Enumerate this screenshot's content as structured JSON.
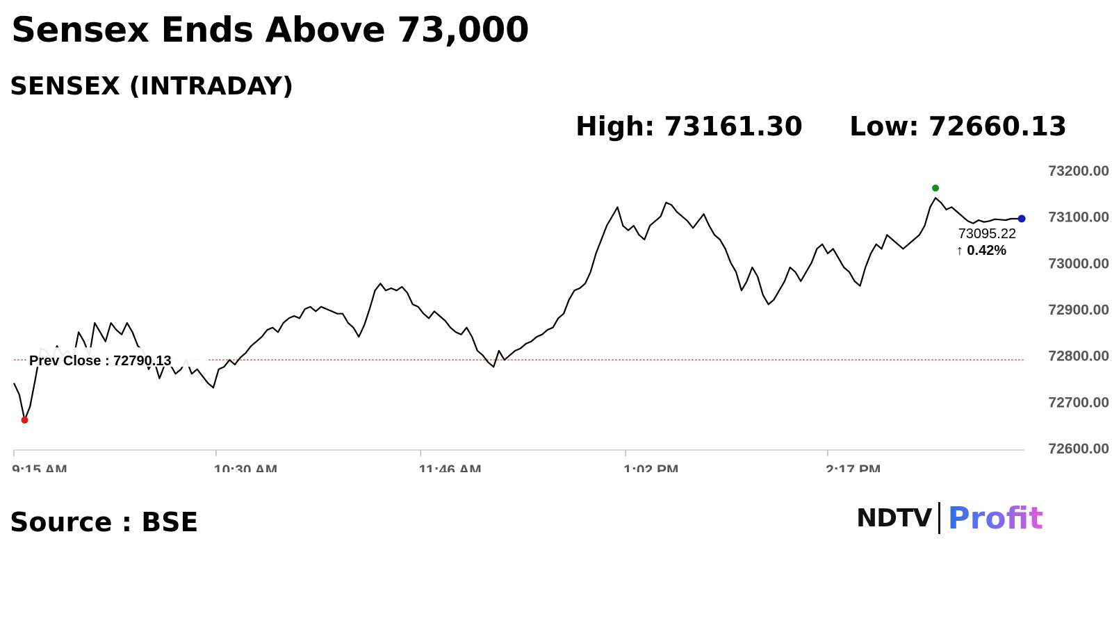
{
  "headline": "Sensex Ends Above 73,000",
  "subtitle": "SENSEX (INTRADAY)",
  "stats": {
    "high_label": "High: 73161.30",
    "low_label": "Low: 72660.13"
  },
  "source": "Source : BSE",
  "logo": {
    "part1": "NDTV",
    "part2": "Profit"
  },
  "colors": {
    "line": "#000000",
    "prev_close_line": "#d9534f",
    "low_marker": "#e8141b",
    "high_marker": "#1a8a1a",
    "last_marker": "#1a1ab0",
    "change_up": "#1a8a1a"
  },
  "chart_data": {
    "type": "line",
    "title": "SENSEX (INTRADAY)",
    "xlabel": "",
    "ylabel": "",
    "ylim": [
      72600,
      73200
    ],
    "yticks": [
      73200,
      73100,
      73000,
      72900,
      72800,
      72700,
      72600
    ],
    "ytick_labels": [
      "73200.00",
      "73100.00",
      "73000.00",
      "72900.00",
      "72800.00",
      "72700.00",
      "72600.00"
    ],
    "xlim_minutes": [
      0,
      375
    ],
    "xticks": [
      {
        "label": "9:15 AM",
        "t": 0
      },
      {
        "label": "10:30 AM",
        "t": 75
      },
      {
        "label": "11:46 AM",
        "t": 151
      },
      {
        "label": "1:02 PM",
        "t": 227
      },
      {
        "label": "2:17 PM",
        "t": 302
      }
    ],
    "prev_close": 72790.13,
    "prev_close_label": "Prev Close : 72790.13",
    "high": 73161.3,
    "low": 72660.13,
    "last": 73095.22,
    "last_label": "73095.22",
    "change_label": "↑ 0.42%",
    "series": [
      {
        "points": [
          [
            0,
            72740
          ],
          [
            2,
            72715
          ],
          [
            4,
            72660
          ],
          [
            6,
            72690
          ],
          [
            8,
            72750
          ],
          [
            10,
            72815
          ],
          [
            12,
            72810
          ],
          [
            14,
            72790
          ],
          [
            16,
            72820
          ],
          [
            18,
            72800
          ],
          [
            20,
            72810
          ],
          [
            22,
            72790
          ],
          [
            24,
            72850
          ],
          [
            26,
            72830
          ],
          [
            28,
            72800
          ],
          [
            30,
            72870
          ],
          [
            32,
            72850
          ],
          [
            34,
            72830
          ],
          [
            36,
            72870
          ],
          [
            38,
            72855
          ],
          [
            40,
            72845
          ],
          [
            42,
            72870
          ],
          [
            44,
            72850
          ],
          [
            46,
            72820
          ],
          [
            48,
            72810
          ],
          [
            50,
            72770
          ],
          [
            52,
            72790
          ],
          [
            54,
            72750
          ],
          [
            56,
            72780
          ],
          [
            58,
            72780
          ],
          [
            60,
            72760
          ],
          [
            62,
            72770
          ],
          [
            64,
            72790
          ],
          [
            66,
            72760
          ],
          [
            68,
            72770
          ],
          [
            70,
            72755
          ],
          [
            72,
            72740
          ],
          [
            74,
            72730
          ],
          [
            76,
            72770
          ],
          [
            78,
            72775
          ],
          [
            80,
            72790
          ],
          [
            82,
            72780
          ],
          [
            84,
            72795
          ],
          [
            86,
            72805
          ],
          [
            88,
            72820
          ],
          [
            90,
            72830
          ],
          [
            92,
            72840
          ],
          [
            94,
            72855
          ],
          [
            96,
            72860
          ],
          [
            98,
            72850
          ],
          [
            100,
            72870
          ],
          [
            102,
            72880
          ],
          [
            104,
            72885
          ],
          [
            106,
            72880
          ],
          [
            108,
            72900
          ],
          [
            110,
            72905
          ],
          [
            112,
            72895
          ],
          [
            114,
            72905
          ],
          [
            116,
            72900
          ],
          [
            118,
            72895
          ],
          [
            120,
            72890
          ],
          [
            122,
            72890
          ],
          [
            124,
            72870
          ],
          [
            126,
            72860
          ],
          [
            128,
            72840
          ],
          [
            130,
            72865
          ],
          [
            132,
            72900
          ],
          [
            134,
            72940
          ],
          [
            136,
            72955
          ],
          [
            138,
            72940
          ],
          [
            140,
            72945
          ],
          [
            142,
            72940
          ],
          [
            144,
            72948
          ],
          [
            146,
            72935
          ],
          [
            148,
            72910
          ],
          [
            150,
            72905
          ],
          [
            152,
            72890
          ],
          [
            154,
            72880
          ],
          [
            156,
            72895
          ],
          [
            158,
            72885
          ],
          [
            160,
            72875
          ],
          [
            162,
            72860
          ],
          [
            164,
            72850
          ],
          [
            166,
            72845
          ],
          [
            168,
            72860
          ],
          [
            170,
            72840
          ],
          [
            172,
            72810
          ],
          [
            174,
            72800
          ],
          [
            176,
            72785
          ],
          [
            178,
            72775
          ],
          [
            180,
            72810
          ],
          [
            182,
            72790
          ],
          [
            184,
            72800
          ],
          [
            186,
            72810
          ],
          [
            188,
            72815
          ],
          [
            190,
            72825
          ],
          [
            192,
            72830
          ],
          [
            194,
            72840
          ],
          [
            196,
            72845
          ],
          [
            198,
            72855
          ],
          [
            200,
            72860
          ],
          [
            202,
            72880
          ],
          [
            204,
            72890
          ],
          [
            206,
            72920
          ],
          [
            208,
            72940
          ],
          [
            210,
            72945
          ],
          [
            212,
            72955
          ],
          [
            214,
            72980
          ],
          [
            216,
            73020
          ],
          [
            218,
            73050
          ],
          [
            220,
            73080
          ],
          [
            222,
            73100
          ],
          [
            224,
            73120
          ],
          [
            226,
            73080
          ],
          [
            228,
            73070
          ],
          [
            230,
            73080
          ],
          [
            232,
            73060
          ],
          [
            234,
            73050
          ],
          [
            236,
            73080
          ],
          [
            238,
            73090
          ],
          [
            240,
            73100
          ],
          [
            242,
            73130
          ],
          [
            244,
            73125
          ],
          [
            246,
            73110
          ],
          [
            248,
            73100
          ],
          [
            250,
            73090
          ],
          [
            252,
            73075
          ],
          [
            254,
            73090
          ],
          [
            256,
            73105
          ],
          [
            258,
            73080
          ],
          [
            260,
            73060
          ],
          [
            262,
            73050
          ],
          [
            264,
            73030
          ],
          [
            266,
            73000
          ],
          [
            268,
            72980
          ],
          [
            270,
            72940
          ],
          [
            272,
            72960
          ],
          [
            274,
            72990
          ],
          [
            276,
            72970
          ],
          [
            278,
            72930
          ],
          [
            280,
            72910
          ],
          [
            282,
            72920
          ],
          [
            284,
            72940
          ],
          [
            286,
            72960
          ],
          [
            288,
            72990
          ],
          [
            290,
            72980
          ],
          [
            292,
            72960
          ],
          [
            294,
            72980
          ],
          [
            296,
            73000
          ],
          [
            298,
            73030
          ],
          [
            300,
            73040
          ],
          [
            302,
            73020
          ],
          [
            304,
            73030
          ],
          [
            306,
            73010
          ],
          [
            308,
            72990
          ],
          [
            310,
            72980
          ],
          [
            312,
            72960
          ],
          [
            314,
            72950
          ],
          [
            316,
            72990
          ],
          [
            318,
            73020
          ],
          [
            320,
            73040
          ],
          [
            322,
            73030
          ],
          [
            324,
            73060
          ],
          [
            326,
            73050
          ],
          [
            328,
            73040
          ],
          [
            330,
            73030
          ],
          [
            332,
            73040
          ],
          [
            334,
            73050
          ],
          [
            336,
            73060
          ],
          [
            338,
            73080
          ],
          [
            340,
            73120
          ],
          [
            342,
            73140
          ],
          [
            344,
            73130
          ],
          [
            346,
            73115
          ],
          [
            348,
            73120
          ],
          [
            350,
            73110
          ],
          [
            352,
            73100
          ],
          [
            354,
            73090
          ],
          [
            356,
            73085
          ],
          [
            358,
            73092
          ],
          [
            360,
            73088
          ],
          [
            362,
            73090
          ],
          [
            364,
            73094
          ],
          [
            366,
            73093
          ],
          [
            368,
            73092
          ],
          [
            370,
            73095
          ],
          [
            372,
            73095
          ],
          [
            374,
            73095.22
          ]
        ]
      }
    ]
  }
}
